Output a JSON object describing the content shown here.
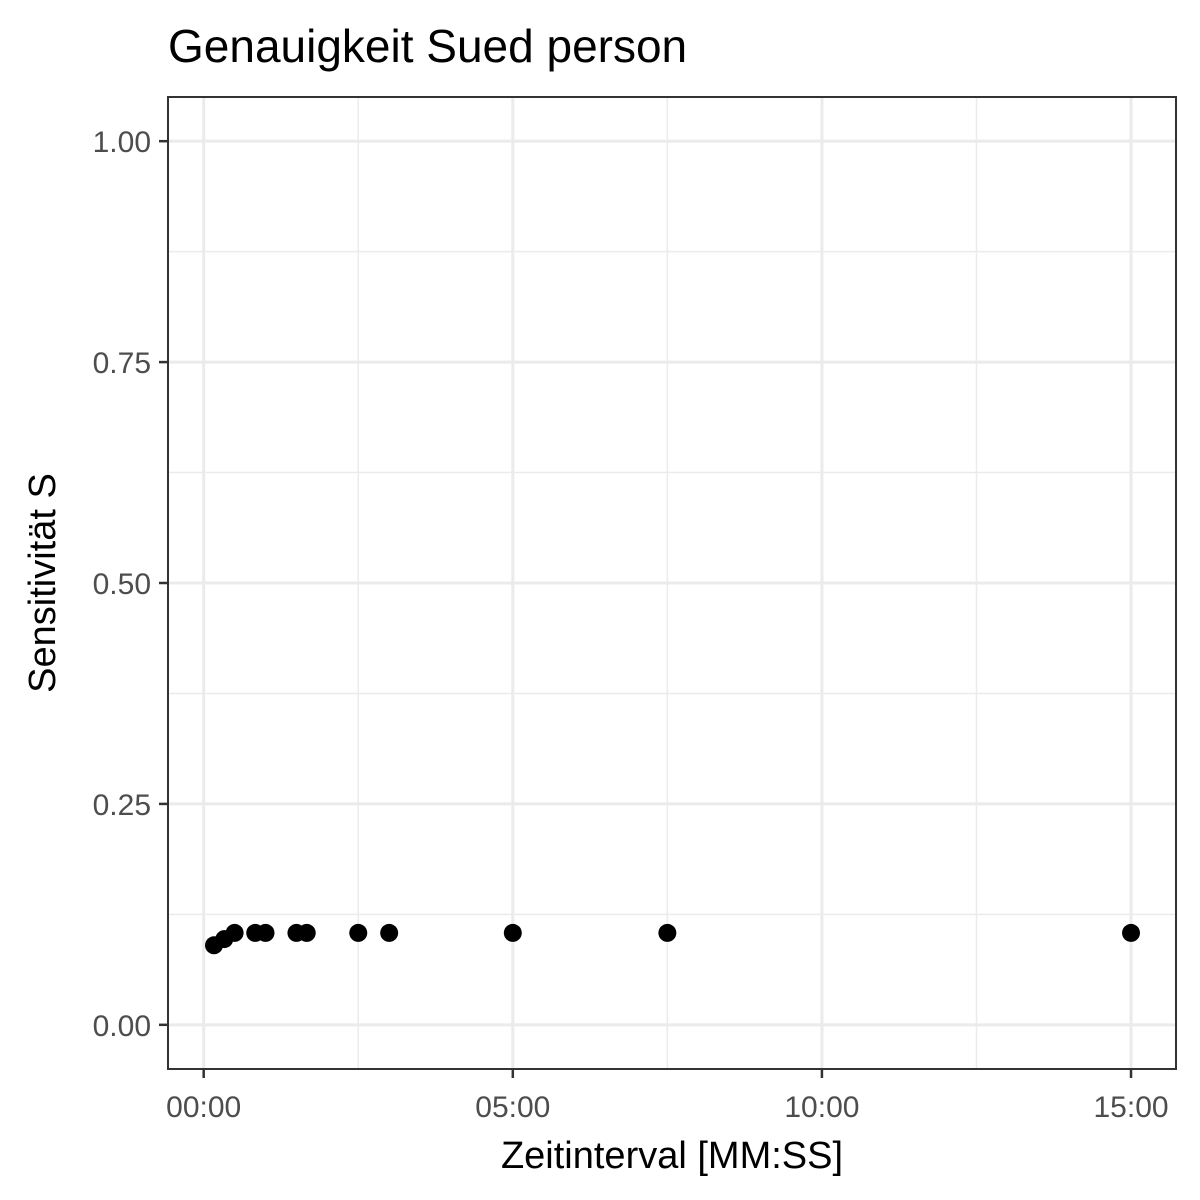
{
  "chart_data": {
    "type": "scatter",
    "title": "Genauigkeit Sued person",
    "xlabel": "Zeitinterval [MM:SS]",
    "ylabel": "Sensitivität S",
    "x_unit": "MM:SS",
    "xlim": [
      "00:00",
      "15:00"
    ],
    "ylim": [
      0,
      1
    ],
    "x_ticks": [
      "00:00",
      "05:00",
      "10:00",
      "15:00"
    ],
    "y_ticks": [
      "0.00",
      "0.25",
      "0.50",
      "0.75",
      "1.00"
    ],
    "grid": true,
    "legend": "none",
    "point_color": "#000000",
    "points": [
      {
        "x": "00:10",
        "y": 0.09
      },
      {
        "x": "00:20",
        "y": 0.097
      },
      {
        "x": "00:30",
        "y": 0.104
      },
      {
        "x": "00:50",
        "y": 0.104
      },
      {
        "x": "01:00",
        "y": 0.104
      },
      {
        "x": "01:30",
        "y": 0.104
      },
      {
        "x": "01:40",
        "y": 0.104
      },
      {
        "x": "02:30",
        "y": 0.104
      },
      {
        "x": "03:00",
        "y": 0.104
      },
      {
        "x": "05:00",
        "y": 0.104
      },
      {
        "x": "07:30",
        "y": 0.104
      },
      {
        "x": "15:00",
        "y": 0.104
      }
    ]
  }
}
